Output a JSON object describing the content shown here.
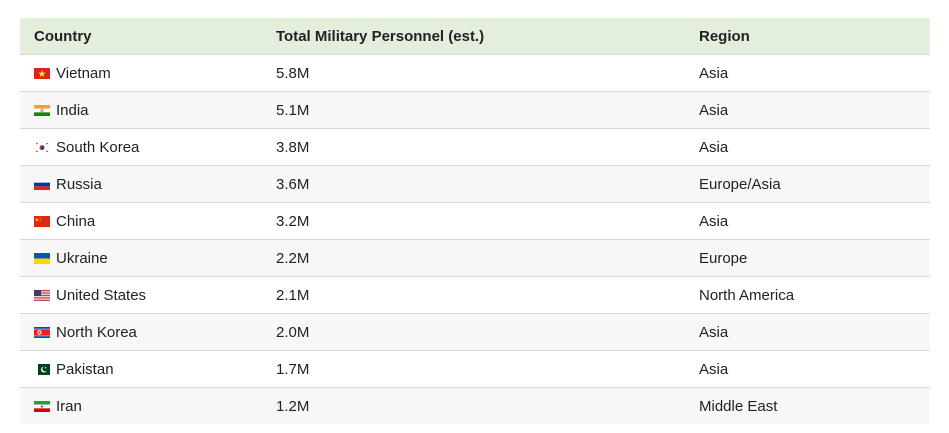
{
  "headers": [
    "Country",
    "Total Military Personnel (est.)",
    "Region"
  ],
  "rows": [
    {
      "country": "Vietnam",
      "personnel": "5.8M",
      "region": "Asia",
      "flag": "vietnam-flag"
    },
    {
      "country": "India",
      "personnel": "5.1M",
      "region": "Asia",
      "flag": "india-flag"
    },
    {
      "country": "South Korea",
      "personnel": "3.8M",
      "region": "Asia",
      "flag": "south-korea-flag"
    },
    {
      "country": "Russia",
      "personnel": "3.6M",
      "region": "Europe/Asia",
      "flag": "russia-flag"
    },
    {
      "country": "China",
      "personnel": "3.2M",
      "region": "Asia",
      "flag": "china-flag"
    },
    {
      "country": "Ukraine",
      "personnel": "2.2M",
      "region": "Europe",
      "flag": "ukraine-flag"
    },
    {
      "country": "United States",
      "personnel": "2.1M",
      "region": "North America",
      "flag": "usa-flag"
    },
    {
      "country": "North Korea",
      "personnel": "2.0M",
      "region": "Asia",
      "flag": "north-korea-flag"
    },
    {
      "country": "Pakistan",
      "personnel": "1.7M",
      "region": "Asia",
      "flag": "pakistan-flag"
    },
    {
      "country": "Iran",
      "personnel": "1.2M",
      "region": "Middle East",
      "flag": "iran-flag"
    }
  ]
}
